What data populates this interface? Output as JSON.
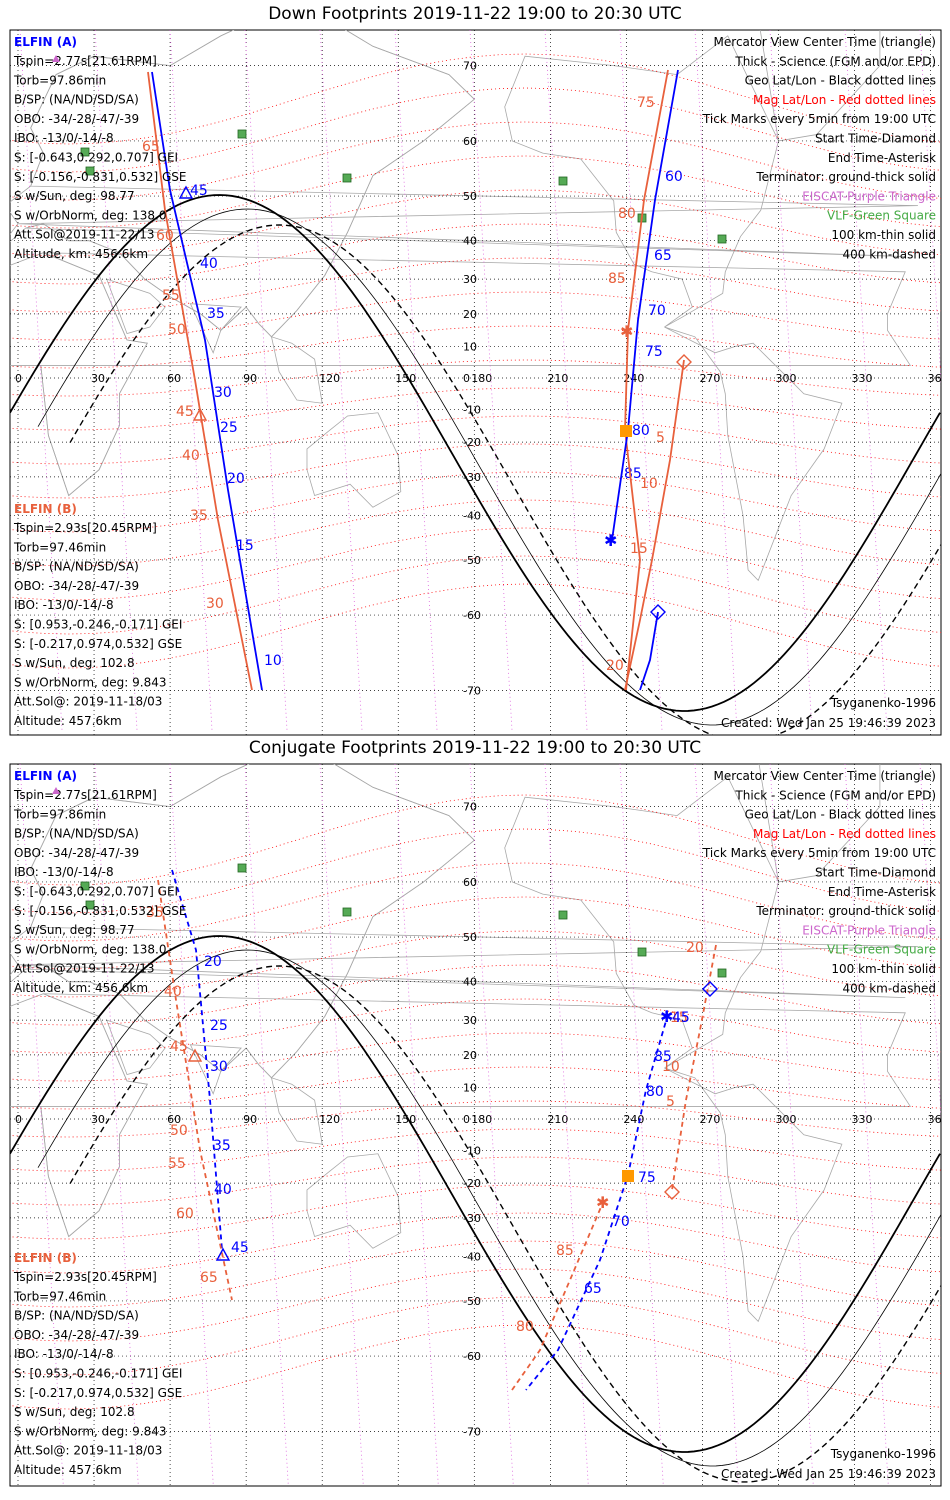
{
  "colors": {
    "blue": "#0000ff",
    "red": "#e8603c",
    "purple": "#cc33cc",
    "green": "#44aa44",
    "orange": "#ff9900",
    "land": "#a8a8a8",
    "grid": "#000000",
    "mag_grid": "#ff0000"
  },
  "geo_lon_labels": [
    "0",
    "30",
    "60",
    "90",
    "120",
    "150",
    "180",
    "210",
    "240",
    "270",
    "300",
    "330",
    "360"
  ],
  "geo_lat_labels_top": [
    "70",
    "60",
    "50",
    "40",
    "30",
    "20",
    "10",
    "0",
    "-10",
    "-20",
    "-30",
    "-40",
    "-50",
    "-60",
    "-70"
  ],
  "panels": [
    {
      "title": "Down Footprints 2019-11-22 19:00 to 20:30 UTC",
      "elfin_a": {
        "name": "ELFIN (A)",
        "lines": [
          "Tspin=2.77s[21.61RPM]",
          "Torb=97.86min",
          "B/SP: (NA/ND/SD/SA)",
          "OBO: -34/-28/-47/-39",
          "IBO: -13/0/-14/-8",
          "S: [-0.643,0.292,0.707] GEI",
          "S: [-0.156,-0.831,0.532] GSE",
          "S w/Sun, deg: 98.77",
          "S w/OrbNorm, deg: 138.0",
          "Att.Sol@2019-11-22/13",
          "Altitude, km: 456.6km"
        ]
      },
      "elfin_b": {
        "name": "ELFIN (B)",
        "lines": [
          "Tspin=2.93s[20.45RPM]",
          "Torb=97.46min",
          "B/SP: (NA/ND/SD/SA)",
          "OBO: -34/-28/-47/-39",
          "IBO: -13/0/-14/-8",
          "S: [0.953,-0.246,-0.171] GEI",
          "S: [-0.217,0.974,0.532] GSE",
          "S w/Sun, deg: 102.8",
          "S w/OrbNorm, deg: 9.843",
          "Att.Sol@: 2019-11-18/03",
          "Altitude: 457.6km"
        ]
      },
      "legend": [
        {
          "text": "Mercator View Center Time (triangle)",
          "color": "#000000"
        },
        {
          "text": "Thick - Science (FGM and/or EPD)",
          "color": "#000000"
        },
        {
          "text": "Geo Lat/Lon - Black dotted lines",
          "color": "#000000"
        },
        {
          "text": "Mag Lat/Lon - Red dotted lines",
          "color": "#ff0000"
        },
        {
          "text": "Tick Marks every 5min from 19:00 UTC",
          "color": "#000000"
        },
        {
          "text": "Start Time-Diamond",
          "color": "#000000"
        },
        {
          "text": "End Time-Asterisk",
          "color": "#000000"
        },
        {
          "text": "Terminator: ground-thick solid",
          "color": "#000000"
        },
        {
          "text": "EISCAT-Purple Triangle",
          "color": "#cc66cc"
        },
        {
          "text": "VLF-Green Square",
          "color": "#44aa44"
        },
        {
          "text": "100 km-thin solid",
          "color": "#000000"
        },
        {
          "text": "400 km-dashed",
          "color": "#000000"
        }
      ],
      "model": "Tsyganenko-1996",
      "created": "Created: Wed Jan 25 19:46:39 2023",
      "track_labels": [
        {
          "text": "65",
          "color": "red"
        },
        {
          "text": "60",
          "color": "red"
        },
        {
          "text": "55",
          "color": "red"
        },
        {
          "text": "50",
          "color": "red"
        },
        {
          "text": "45",
          "color": "red"
        },
        {
          "text": "40",
          "color": "red"
        },
        {
          "text": "35",
          "color": "red"
        },
        {
          "text": "30",
          "color": "red"
        },
        {
          "text": "45",
          "color": "blue"
        },
        {
          "text": "40",
          "color": "blue"
        },
        {
          "text": "35",
          "color": "blue"
        },
        {
          "text": "30",
          "color": "blue"
        },
        {
          "text": "25",
          "color": "blue"
        },
        {
          "text": "20",
          "color": "blue"
        },
        {
          "text": "15",
          "color": "blue"
        },
        {
          "text": "10",
          "color": "blue"
        },
        {
          "text": "75",
          "color": "red"
        },
        {
          "text": "80",
          "color": "red"
        },
        {
          "text": "85",
          "color": "red"
        },
        {
          "text": "5",
          "color": "red"
        },
        {
          "text": "10",
          "color": "red"
        },
        {
          "text": "15",
          "color": "red"
        },
        {
          "text": "20",
          "color": "red"
        },
        {
          "text": "60",
          "color": "blue"
        },
        {
          "text": "65",
          "color": "blue"
        },
        {
          "text": "70",
          "color": "blue"
        },
        {
          "text": "75",
          "color": "blue"
        },
        {
          "text": "80",
          "color": "blue"
        },
        {
          "text": "85",
          "color": "blue"
        }
      ]
    },
    {
      "title": "Conjugate Footprints 2019-11-22 19:00 to 20:30 UTC",
      "elfin_a": {
        "name": "ELFIN (A)",
        "lines": [
          "Tspin=2.77s[21.61RPM]",
          "Torb=97.86min",
          "B/SP: (NA/ND/SD/SA)",
          "OBO: -34/-28/-47/-39",
          "IBO: -13/0/-14/-8",
          "S: [-0.643,0.292,0.707] GEI",
          "S: [-0.156,-0.831,0.532] GSE",
          "S w/Sun, deg: 98.77",
          "S w/OrbNorm, deg: 138.0",
          "Att.Sol@2019-11-22/13",
          "Altitude, km: 456.6km"
        ]
      },
      "elfin_b": {
        "name": "ELFIN (B)",
        "lines": [
          "Tspin=2.93s[20.45RPM]",
          "Torb=97.46min",
          "B/SP: (NA/ND/SD/SA)",
          "OBO: -34/-28/-47/-39",
          "IBO: -13/0/-14/-8",
          "S: [0.953,-0.246,-0.171] GEI",
          "S: [-0.217,0.974,0.532] GSE",
          "S w/Sun, deg: 102.8",
          "S w/OrbNorm, deg: 9.843",
          "Att.Sol@: 2019-11-18/03",
          "Altitude: 457.6km"
        ]
      },
      "legend": [
        {
          "text": "Mercator View Center Time (triangle)",
          "color": "#000000"
        },
        {
          "text": "Thick - Science (FGM and/or EPD)",
          "color": "#000000"
        },
        {
          "text": "Geo Lat/Lon - Black dotted lines",
          "color": "#000000"
        },
        {
          "text": "Mag Lat/Lon - Red dotted lines",
          "color": "#ff0000"
        },
        {
          "text": "Tick Marks every 5min from 19:00 UTC",
          "color": "#000000"
        },
        {
          "text": "Start Time-Diamond",
          "color": "#000000"
        },
        {
          "text": "End Time-Asterisk",
          "color": "#000000"
        },
        {
          "text": "Terminator: ground-thick solid",
          "color": "#000000"
        },
        {
          "text": "EISCAT-Purple Triangle",
          "color": "#cc66cc"
        },
        {
          "text": "VLF-Green Square",
          "color": "#44aa44"
        },
        {
          "text": "100 km-thin solid",
          "color": "#000000"
        },
        {
          "text": "400 km-dashed",
          "color": "#000000"
        }
      ],
      "model": "Tsyganenko-1996",
      "created": "Created: Wed Jan 25 19:46:39 2023",
      "track_labels": [
        {
          "text": "20",
          "color": "blue"
        },
        {
          "text": "25",
          "color": "blue"
        },
        {
          "text": "30",
          "color": "blue"
        },
        {
          "text": "35",
          "color": "blue"
        },
        {
          "text": "40",
          "color": "blue"
        },
        {
          "text": "45",
          "color": "blue"
        },
        {
          "text": "35",
          "color": "red"
        },
        {
          "text": "40",
          "color": "red"
        },
        {
          "text": "45",
          "color": "red"
        },
        {
          "text": "50",
          "color": "red"
        },
        {
          "text": "55",
          "color": "red"
        },
        {
          "text": "60",
          "color": "red"
        },
        {
          "text": "65",
          "color": "red"
        },
        {
          "text": "20",
          "color": "red"
        },
        {
          "text": "15",
          "color": "red"
        },
        {
          "text": "10",
          "color": "red"
        },
        {
          "text": "5",
          "color": "red"
        },
        {
          "text": "85",
          "color": "red"
        },
        {
          "text": "80",
          "color": "red"
        },
        {
          "text": "45",
          "color": "blue"
        },
        {
          "text": "85",
          "color": "blue"
        },
        {
          "text": "80",
          "color": "blue"
        },
        {
          "text": "75",
          "color": "blue"
        },
        {
          "text": "70",
          "color": "blue"
        },
        {
          "text": "65",
          "color": "blue"
        }
      ]
    }
  ]
}
